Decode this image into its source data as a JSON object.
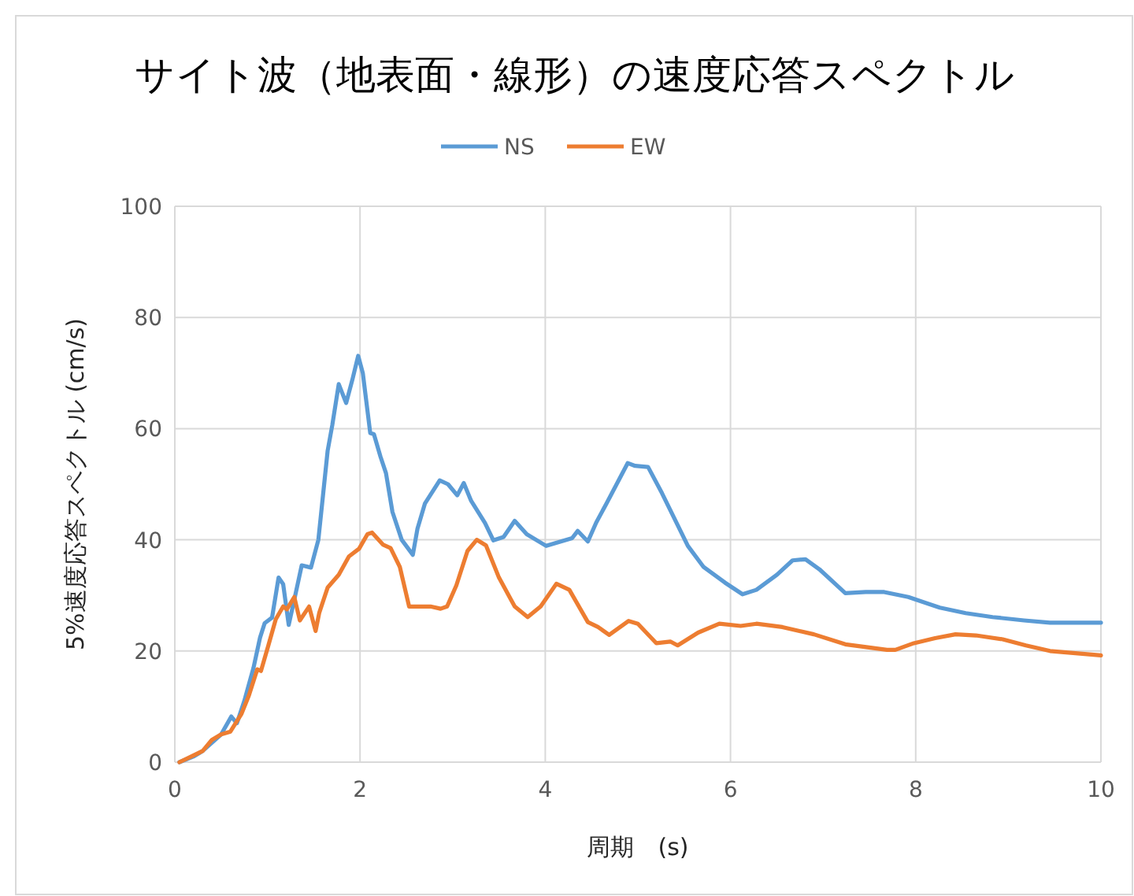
{
  "chart_data": {
    "type": "line",
    "title": "サイト波（地表面・線形）の速度応答スペクトル",
    "xlabel": "周期　(s)",
    "ylabel": "5%速度応答スペクトル (cm/s)",
    "xlim": [
      0,
      10
    ],
    "ylim": [
      0,
      100
    ],
    "xticks": [
      0,
      2,
      4,
      6,
      8,
      10
    ],
    "yticks": [
      0,
      20,
      40,
      60,
      80,
      100
    ],
    "grid": true,
    "legend": "top",
    "series": [
      {
        "name": "NS",
        "color": "#5b9bd5",
        "x": [
          0.05,
          0.2,
          0.3,
          0.5,
          0.61,
          0.67,
          0.75,
          0.85,
          0.92,
          0.97,
          1.05,
          1.12,
          1.17,
          1.23,
          1.3,
          1.37,
          1.47,
          1.55,
          1.6,
          1.65,
          1.7,
          1.77,
          1.85,
          1.92,
          1.98,
          2.03,
          2.11,
          2.15,
          2.22,
          2.28,
          2.35,
          2.45,
          2.57,
          2.62,
          2.7,
          2.86,
          2.95,
          3.05,
          3.12,
          3.2,
          3.35,
          3.44,
          3.55,
          3.67,
          3.8,
          4.01,
          4.29,
          4.35,
          4.46,
          4.55,
          4.66,
          4.89,
          4.97,
          5.11,
          5.26,
          5.54,
          5.71,
          5.94,
          6.13,
          6.28,
          6.5,
          6.67,
          6.81,
          6.96,
          7.24,
          7.46,
          7.66,
          7.92,
          8.26,
          8.54,
          8.83,
          9.17,
          9.45,
          10
        ],
        "values": [
          0,
          1,
          2,
          5,
          8.2,
          7,
          11,
          17,
          22.4,
          25,
          26,
          33.2,
          32,
          24.7,
          30,
          35.4,
          35,
          40,
          48,
          56,
          60.6,
          68,
          64.6,
          69,
          73.1,
          70,
          59.2,
          59,
          55,
          52,
          45,
          40,
          37.3,
          42,
          46.5,
          50.7,
          50,
          48,
          50.2,
          47,
          43,
          39.9,
          40.5,
          43.4,
          41,
          38.9,
          40.3,
          41.6,
          39.7,
          43.1,
          46.5,
          53.8,
          53.3,
          53.1,
          48.4,
          38.9,
          35.1,
          32.3,
          30.2,
          31,
          33.7,
          36.3,
          36.5,
          34.7,
          30.4,
          30.6,
          30.6,
          29.7,
          27.8,
          26.8,
          26.1,
          25.5,
          25.1,
          25.1
        ]
      },
      {
        "name": "EW",
        "color": "#ed7d31",
        "x": [
          0.05,
          0.3,
          0.4,
          0.5,
          0.6,
          0.72,
          0.8,
          0.89,
          0.93,
          1.01,
          1.09,
          1.17,
          1.21,
          1.29,
          1.35,
          1.45,
          1.52,
          1.56,
          1.65,
          1.77,
          1.88,
          1.99,
          2.08,
          2.13,
          2.25,
          2.33,
          2.43,
          2.53,
          2.65,
          2.76,
          2.87,
          2.94,
          3.04,
          3.16,
          3.26,
          3.36,
          3.5,
          3.67,
          3.81,
          3.95,
          4.12,
          4.26,
          4.46,
          4.57,
          4.69,
          4.9,
          5.0,
          5.2,
          5.35,
          5.43,
          5.65,
          5.88,
          6.11,
          6.28,
          6.56,
          6.9,
          7.24,
          7.69,
          7.78,
          7.98,
          8.21,
          8.43,
          8.65,
          8.94,
          9.19,
          9.45,
          10
        ],
        "values": [
          0,
          2,
          4,
          5,
          5.5,
          8.7,
          12,
          16.7,
          16.4,
          21,
          25.7,
          28,
          27.5,
          29.7,
          25.5,
          28,
          23.6,
          26.9,
          31.4,
          33.7,
          37,
          38.4,
          41,
          41.3,
          39.1,
          38.5,
          35.1,
          28,
          28,
          28,
          27.6,
          28,
          31.8,
          38,
          40,
          39,
          33.2,
          28,
          26.1,
          28,
          32.1,
          31,
          25.2,
          24.3,
          22.9,
          25.4,
          24.9,
          21.4,
          21.7,
          21,
          23.3,
          24.9,
          24.5,
          24.9,
          24.3,
          23,
          21.2,
          20.2,
          20.2,
          21.4,
          22.3,
          23,
          22.8,
          22.1,
          21,
          20,
          19.2
        ]
      }
    ]
  }
}
